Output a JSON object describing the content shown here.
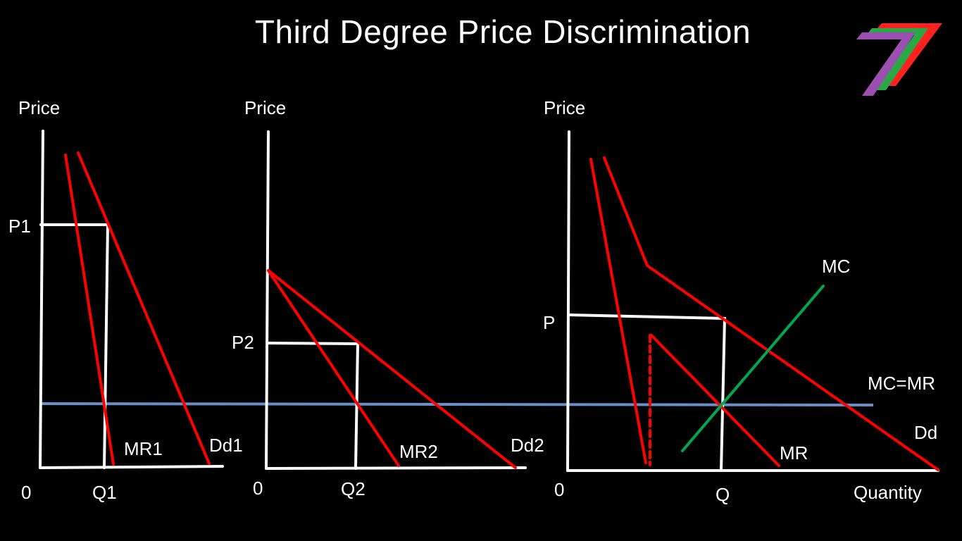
{
  "title": "Third Degree Price Discrimination",
  "colors": {
    "background": "#000000",
    "axes": "#ffffff",
    "demand_mr": "#ff0000",
    "mc": "#00a651",
    "mc_mr_line": "#6a8ec7",
    "logo": [
      "#ff2020",
      "#2aa845",
      "#9b4fb0"
    ]
  },
  "logo_icon": "seven-logo-icon",
  "panels": [
    {
      "y_axis_label": "Price",
      "origin_label": "0",
      "price_label": "P1",
      "quantity_label": "Q1",
      "mr_label": "MR1",
      "demand_label": "Dd1"
    },
    {
      "y_axis_label": "Price",
      "origin_label": "0",
      "price_label": "P2",
      "quantity_label": "Q2",
      "mr_label": "MR2",
      "demand_label": "Dd2"
    },
    {
      "y_axis_label": "Price",
      "origin_label": "0",
      "price_label": "P",
      "quantity_label": "Q",
      "x_axis_label": "Quantity",
      "mr_label": "MR",
      "demand_label": "Dd",
      "mc_label": "MC"
    }
  ],
  "mc_mr_label": "MC=MR"
}
